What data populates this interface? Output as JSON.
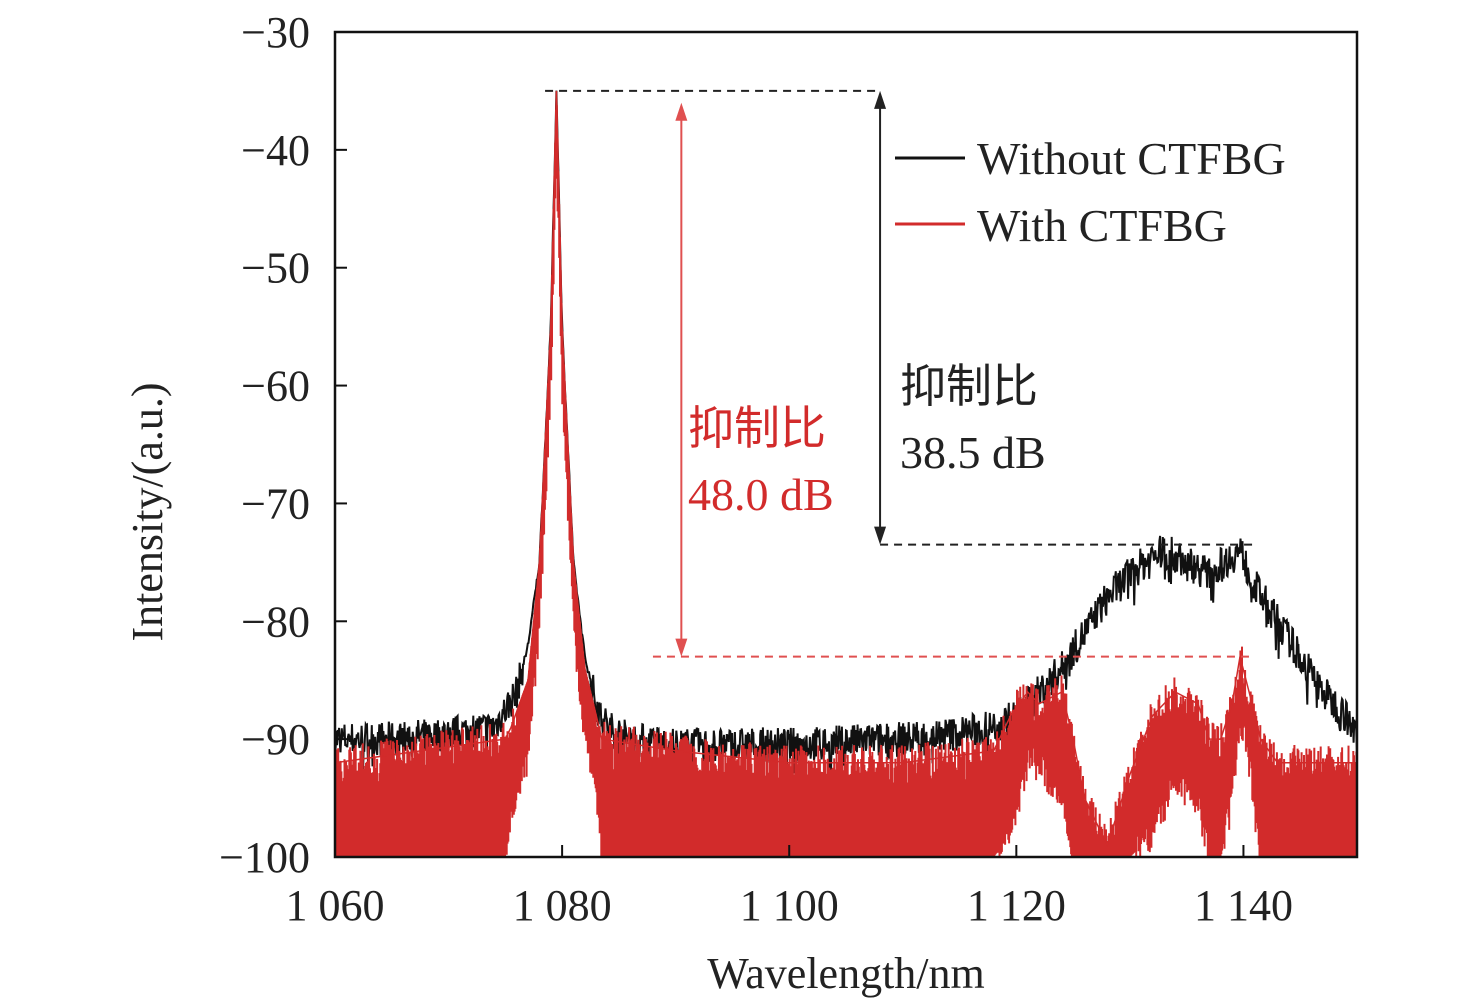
{
  "chart_data": {
    "type": "line",
    "title": "",
    "xlabel": "Wavelength/nm",
    "ylabel": "Intensity/(a.u.)",
    "xlim": [
      1060,
      1150
    ],
    "ylim": [
      -100,
      -30
    ],
    "xticks": [
      1060,
      1080,
      1100,
      1120,
      1140
    ],
    "xtick_labels": [
      "1 060",
      "1 080",
      "1 100",
      "1 120",
      "1 140"
    ],
    "yticks": [
      -30,
      -40,
      -50,
      -60,
      -70,
      -80,
      -90,
      -100
    ],
    "ytick_labels": [
      "−30",
      "−40",
      "−50",
      "−60",
      "−70",
      "−80",
      "−90",
      "−100"
    ],
    "grid": false,
    "legend_position": "top-right",
    "series": [
      {
        "name": "Without CTFBG",
        "color": "#111111",
        "x": [
          1060,
          1065,
          1070,
          1074,
          1076,
          1077,
          1078,
          1079,
          1079.5,
          1080,
          1081,
          1082,
          1083,
          1084,
          1086,
          1090,
          1100,
          1110,
          1115,
          1118,
          1120,
          1122,
          1124,
          1126,
          1128,
          1130,
          1132,
          1133,
          1135,
          1137,
          1139,
          1139.7,
          1141,
          1143,
          1145,
          1147,
          1149,
          1150
        ],
        "y": [
          -90,
          -90,
          -89.5,
          -89,
          -86,
          -82,
          -75,
          -55,
          -35,
          -55,
          -75,
          -83,
          -87,
          -89,
          -90,
          -90.5,
          -90.5,
          -90,
          -89.5,
          -89,
          -88,
          -86,
          -84,
          -81,
          -78,
          -76,
          -74.5,
          -74,
          -75,
          -76,
          -74.5,
          -74,
          -77,
          -80,
          -83,
          -86,
          -88,
          -90
        ],
        "noise_db": 1.5
      },
      {
        "name": "With CTFBG",
        "color": "#d22b2b",
        "x": [
          1060,
          1075,
          1075.5,
          1077,
          1078,
          1079,
          1079.5,
          1080,
          1081,
          1082,
          1083,
          1083.5,
          1090,
          1100,
          1110,
          1118,
          1119.5,
          1121,
          1122,
          1124,
          1125,
          1126,
          1128,
          1130,
          1132,
          1134,
          1136,
          1137,
          1138,
          1139,
          1139.7,
          1140.5,
          1141.5,
          1143,
          1150
        ],
        "y_upper": [
          -92,
          -90,
          -89,
          -85,
          -75,
          -55,
          -35,
          -55,
          -75,
          -84,
          -88,
          -90,
          -91,
          -92,
          -92,
          -91,
          -88,
          -86,
          -87,
          -86,
          -90,
          -95,
          -99,
          -93,
          -88,
          -86,
          -87,
          -90,
          -90,
          -87,
          -83,
          -86,
          -90,
          -92,
          -92
        ],
        "y_lower": [
          -100,
          -100,
          -96,
          -92,
          -80,
          -60,
          -40,
          -60,
          -80,
          -90,
          -94,
          -100,
          -100,
          -100,
          -100,
          -100,
          -98,
          -92,
          -92,
          -95,
          -100,
          -100,
          -100,
          -100,
          -98,
          -94,
          -95,
          -100,
          -100,
          -95,
          -88,
          -92,
          -100,
          -100,
          -100
        ]
      }
    ],
    "annotations": {
      "black_top_line": {
        "y": -35,
        "x_start": 1078.5,
        "x_end": 1108
      },
      "black_bottom_line": {
        "y": -73.5,
        "x_start": 1108,
        "x_end": 1141
      },
      "red_bottom_line": {
        "y": -83,
        "x_start": 1088,
        "x_end": 1141
      },
      "red_arrow": {
        "x": 1090.5,
        "y_from": -36,
        "y_to": -83
      },
      "black_arrow": {
        "x": 1108,
        "y_from": -35,
        "y_to": -73.5
      },
      "red_label_1": "抑制比",
      "red_label_2": "48.0 dB",
      "black_label_1": "抑制比",
      "black_label_2": "38.5 dB"
    }
  }
}
